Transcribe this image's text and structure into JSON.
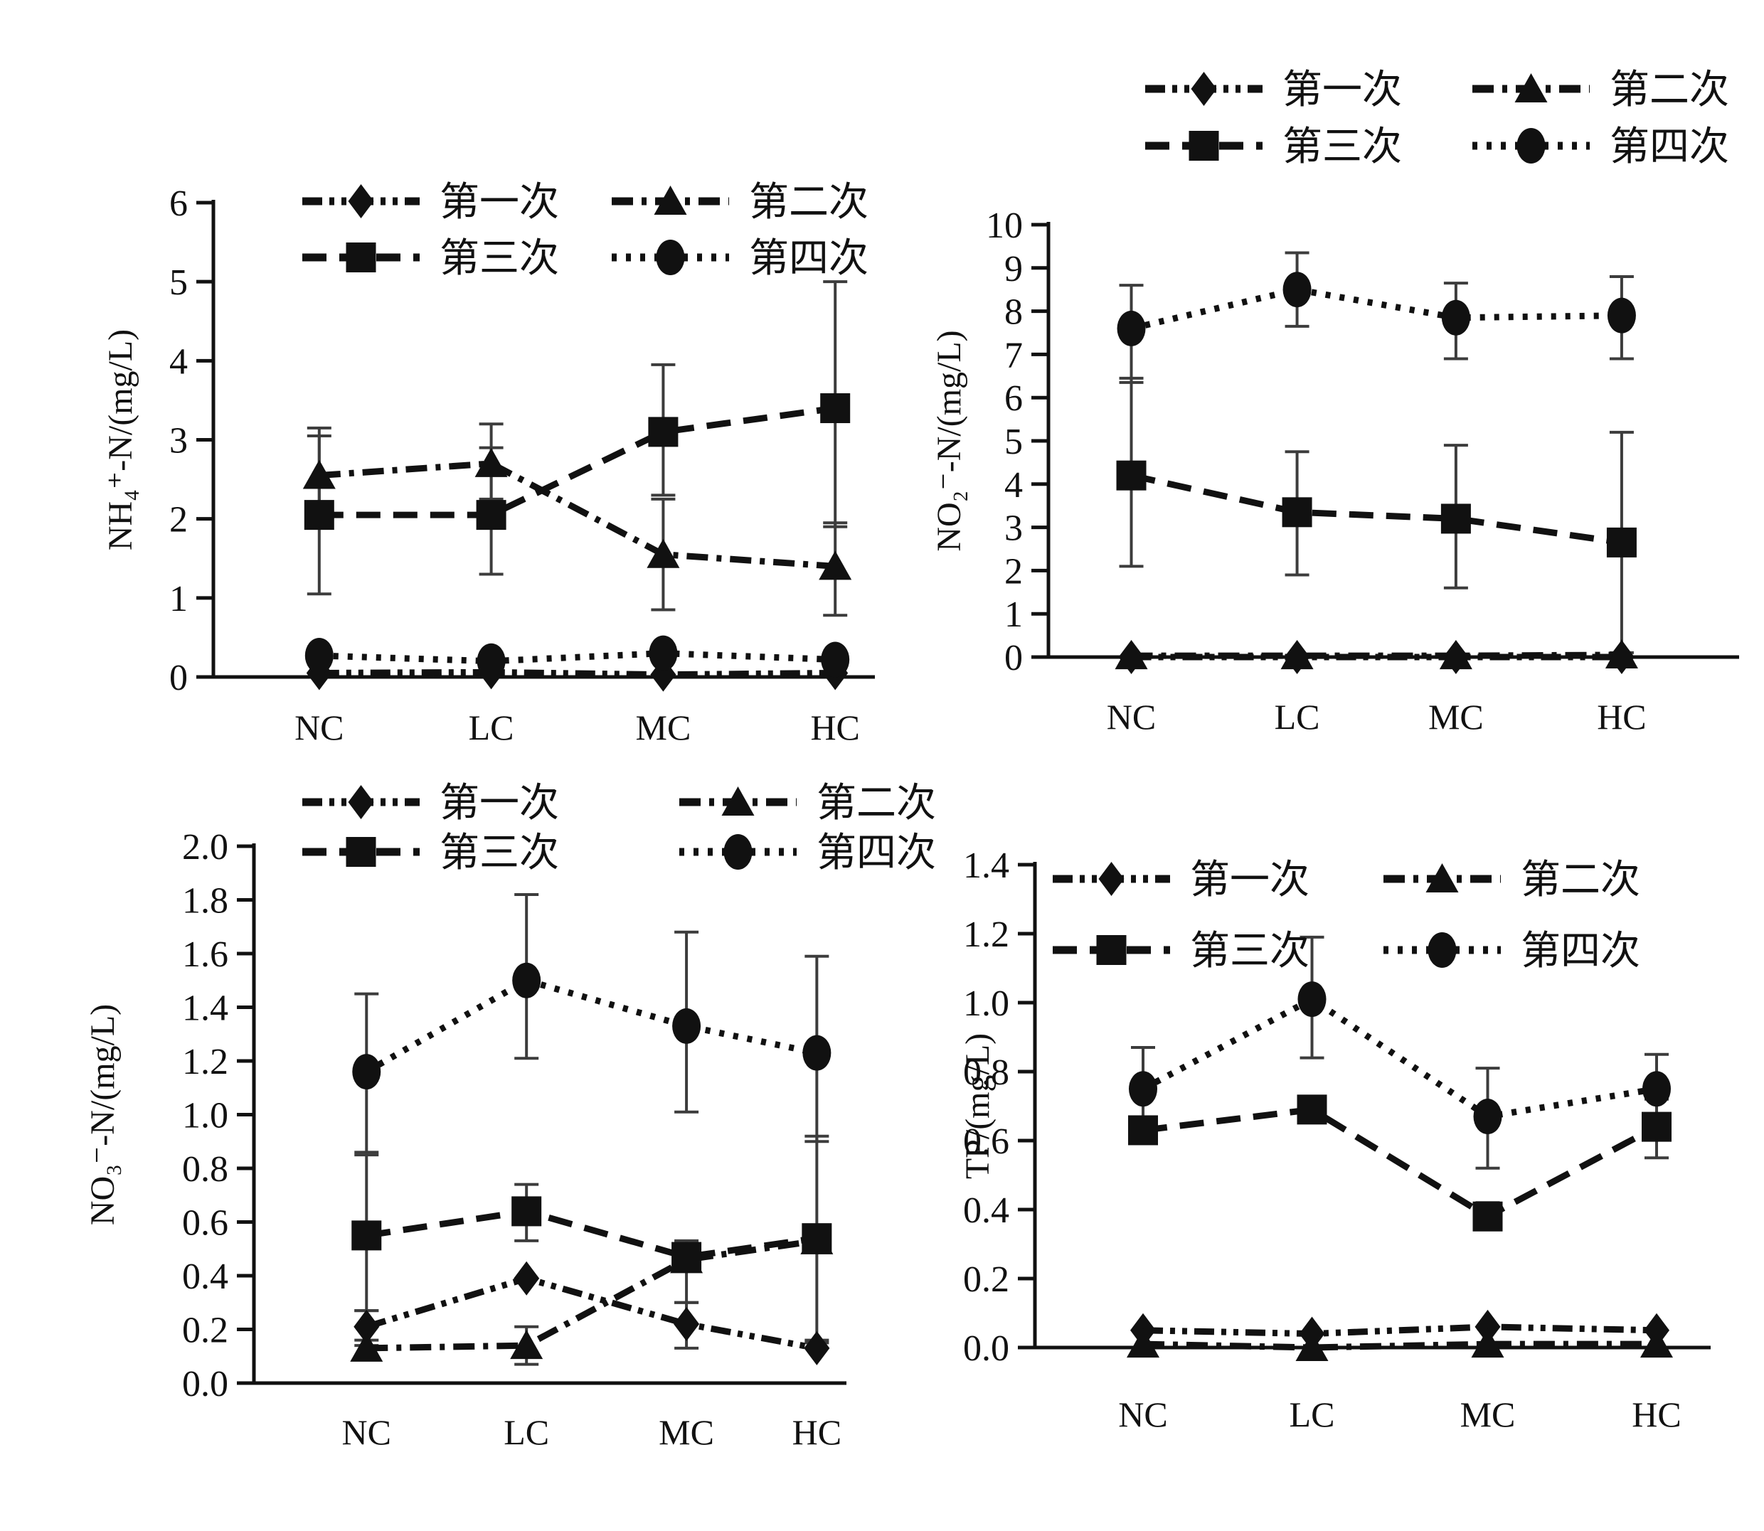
{
  "figure": {
    "background": "#ffffff",
    "ink": "#111111",
    "error_bar_color": "#3c3c3c"
  },
  "chart_data": [
    {
      "id": "nh4n",
      "type": "line",
      "title": "",
      "xlabel": "",
      "ylabel": "NH₄⁺-N/(mg/L)",
      "categories": [
        "NC",
        "LC",
        "MC",
        "HC"
      ],
      "ylim": [
        0,
        6
      ],
      "ytick_step": 1,
      "ytick_decimals": 0,
      "grid": false,
      "legend_position": "inside-top",
      "series": [
        {
          "name": "第一次",
          "marker": "diamond",
          "line_style": "dashdotdot",
          "values": [
            0.05,
            0.06,
            0.03,
            0.05
          ],
          "err_lo": [
            null,
            null,
            null,
            null
          ],
          "err_hi": [
            null,
            null,
            null,
            null
          ]
        },
        {
          "name": "第二次",
          "marker": "triangle",
          "line_style": "dashdot",
          "values": [
            2.55,
            2.7,
            1.55,
            1.4
          ],
          "err_lo": [
            1.95,
            2.25,
            0.85,
            0.78
          ],
          "err_hi": [
            3.15,
            3.2,
            2.25,
            1.95
          ]
        },
        {
          "name": "第三次",
          "marker": "square",
          "line_style": "dashed",
          "values": [
            2.05,
            2.05,
            3.1,
            3.4
          ],
          "err_lo": [
            1.05,
            1.3,
            2.3,
            1.9
          ],
          "err_hi": [
            3.05,
            2.9,
            3.95,
            5.0
          ]
        },
        {
          "name": "第四次",
          "marker": "circle",
          "line_style": "dotted",
          "values": [
            0.27,
            0.2,
            0.3,
            0.22
          ],
          "err_lo": [
            null,
            null,
            null,
            null
          ],
          "err_hi": [
            null,
            null,
            null,
            null
          ]
        }
      ],
      "layout": {
        "plot": [
          300,
          285,
          1230,
          952
        ],
        "cat_fracs": [
          0.16,
          0.42,
          0.68,
          0.94
        ],
        "category_label_y": 1040,
        "legend_rows": [
          283,
          362
        ],
        "legend_cols": [
          425,
          860
        ],
        "ylabel_x": 185
      }
    },
    {
      "id": "no2n",
      "type": "line",
      "title": "",
      "xlabel": "",
      "ylabel": "NO₂⁻-N/(mg/L)",
      "categories": [
        "NC",
        "LC",
        "MC",
        "HC"
      ],
      "ylim": [
        0,
        10
      ],
      "ytick_step": 1,
      "ytick_decimals": 0,
      "grid": false,
      "legend_position": "above-top",
      "series": [
        {
          "name": "第一次",
          "marker": "diamond",
          "line_style": "dashdotdot",
          "values": [
            0.0,
            0.0,
            0.0,
            0.0
          ],
          "err_lo": [
            null,
            null,
            null,
            null
          ],
          "err_hi": [
            null,
            null,
            null,
            null
          ]
        },
        {
          "name": "第二次",
          "marker": "triangle",
          "line_style": "dashdot",
          "values": [
            0.03,
            0.03,
            0.03,
            0.05
          ],
          "err_lo": [
            null,
            null,
            null,
            null
          ],
          "err_hi": [
            null,
            null,
            null,
            null
          ]
        },
        {
          "name": "第三次",
          "marker": "square",
          "line_style": "dashed",
          "values": [
            4.2,
            3.35,
            3.2,
            2.65
          ],
          "err_lo": [
            2.1,
            1.9,
            1.6,
            0.1
          ],
          "err_hi": [
            6.45,
            4.75,
            4.9,
            5.2
          ]
        },
        {
          "name": "第四次",
          "marker": "circle",
          "line_style": "dotted",
          "values": [
            7.6,
            8.5,
            7.85,
            7.9
          ],
          "err_lo": [
            6.35,
            7.65,
            6.9,
            6.9
          ],
          "err_hi": [
            8.6,
            9.35,
            8.65,
            8.8
          ]
        }
      ],
      "layout": {
        "plot": [
          234,
          316,
          1205,
          924
        ],
        "cat_fracs": [
          0.12,
          0.36,
          0.59,
          0.83
        ],
        "category_label_y": 1025,
        "legend_rows": [
          125,
          205
        ],
        "legend_cols": [
          370,
          830
        ],
        "ylabel_x": 110
      }
    },
    {
      "id": "no3n",
      "type": "line",
      "title": "",
      "xlabel": "",
      "ylabel": "NO₃⁻-N/(mg/L)",
      "categories": [
        "NC",
        "LC",
        "MC",
        "HC"
      ],
      "ylim": [
        0,
        2.0
      ],
      "ytick_step": 0.2,
      "ytick_decimals": 1,
      "grid": false,
      "legend_position": "inside-top",
      "series": [
        {
          "name": "第一次",
          "marker": "diamond",
          "line_style": "dashdotdot",
          "values": [
            0.21,
            0.39,
            0.22,
            0.13
          ],
          "err_lo": [
            0.14,
            null,
            0.13,
            null
          ],
          "err_hi": [
            0.27,
            null,
            0.3,
            0.16
          ]
        },
        {
          "name": "第二次",
          "marker": "triangle",
          "line_style": "dashdot",
          "values": [
            0.13,
            0.14,
            0.46,
            0.53
          ],
          "err_lo": [
            0.1,
            0.07,
            null,
            null
          ],
          "err_hi": [
            0.16,
            0.21,
            null,
            null
          ]
        },
        {
          "name": "第三次",
          "marker": "square",
          "line_style": "dashed",
          "values": [
            0.55,
            0.64,
            0.47,
            0.54
          ],
          "err_lo": [
            0.27,
            0.53,
            0.3,
            0.15
          ],
          "err_hi": [
            0.85,
            0.74,
            0.53,
            0.92
          ]
        },
        {
          "name": "第四次",
          "marker": "circle",
          "line_style": "dotted",
          "values": [
            1.16,
            1.5,
            1.33,
            1.23
          ],
          "err_lo": [
            0.86,
            1.21,
            1.01,
            0.9
          ],
          "err_hi": [
            1.45,
            1.82,
            1.68,
            1.59
          ]
        }
      ],
      "layout": {
        "plot": [
          357,
          114,
          1190,
          869
        ],
        "cat_fracs": [
          0.19,
          0.46,
          0.73,
          0.95
        ],
        "category_label_y": 955,
        "legend_rows": [
          52,
          122
        ],
        "legend_cols": [
          425,
          955
        ],
        "ylabel_x": 160
      }
    },
    {
      "id": "tp",
      "type": "line",
      "title": "",
      "xlabel": "",
      "ylabel": "TP/(mg/L)",
      "categories": [
        "NC",
        "LC",
        "MC",
        "HC"
      ],
      "ylim": [
        0,
        1.4
      ],
      "ytick_step": 0.2,
      "ytick_decimals": 1,
      "grid": false,
      "legend_position": "inside-top",
      "series": [
        {
          "name": "第一次",
          "marker": "diamond",
          "line_style": "dashdotdot",
          "values": [
            0.05,
            0.04,
            0.06,
            0.05
          ],
          "err_lo": [
            null,
            null,
            null,
            null
          ],
          "err_hi": [
            null,
            null,
            null,
            null
          ]
        },
        {
          "name": "第二次",
          "marker": "triangle",
          "line_style": "dashdot",
          "values": [
            0.01,
            0.0,
            0.01,
            0.01
          ],
          "err_lo": [
            null,
            null,
            null,
            null
          ],
          "err_hi": [
            null,
            null,
            null,
            null
          ]
        },
        {
          "name": "第三次",
          "marker": "square",
          "line_style": "dashed",
          "values": [
            0.63,
            0.69,
            0.38,
            0.64
          ],
          "err_lo": [
            0.6,
            null,
            0.36,
            0.55
          ],
          "err_hi": [
            0.66,
            null,
            0.42,
            0.72
          ]
        },
        {
          "name": "第四次",
          "marker": "circle",
          "line_style": "dotted",
          "values": [
            0.75,
            1.01,
            0.67,
            0.75
          ],
          "err_lo": [
            0.65,
            0.84,
            0.52,
            0.65
          ],
          "err_hi": [
            0.87,
            1.19,
            0.81,
            0.85
          ]
        }
      ],
      "layout": {
        "plot": [
          215,
          140,
          1165,
          819
        ],
        "cat_fracs": [
          0.16,
          0.41,
          0.67,
          0.92
        ],
        "category_label_y": 930,
        "legend_rows": [
          160,
          260
        ],
        "legend_cols": [
          240,
          705
        ],
        "ylabel_x": 150
      }
    }
  ]
}
